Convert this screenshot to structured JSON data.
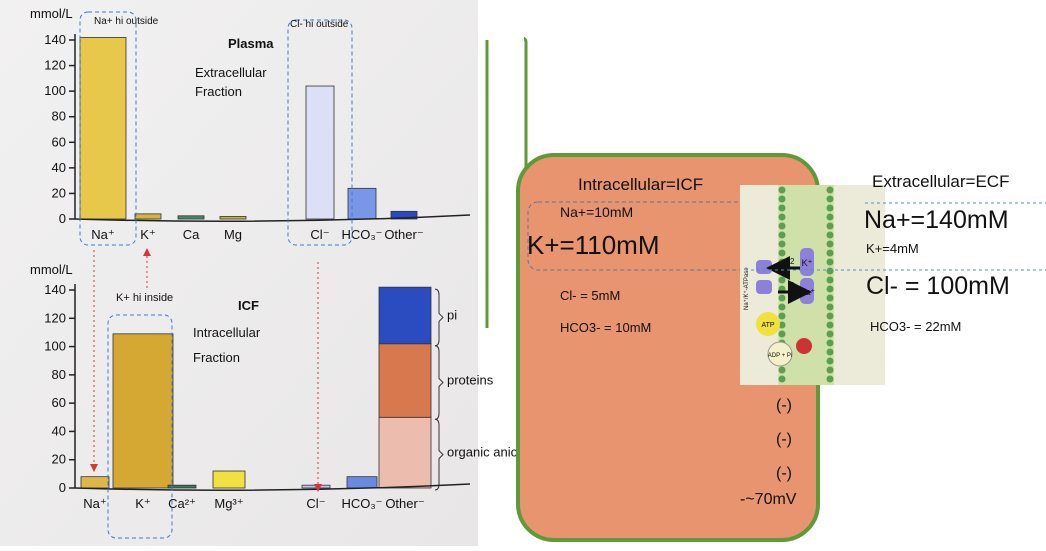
{
  "chart_data": [
    {
      "type": "bar",
      "unit_label": "mmol/L",
      "title": "Plasma",
      "subtitle": [
        "Extracellular",
        "Fraction"
      ],
      "categories": [
        "Na⁺",
        "K⁺",
        "Ca",
        "Mg",
        "Cl⁻",
        "HCO₃⁻",
        "Other⁻"
      ],
      "values": [
        142,
        4,
        2.5,
        2,
        104,
        24,
        6
      ],
      "colors": [
        "#e8c84a",
        "#d9b43c",
        "#4a8a6a",
        "#c8b840",
        "#dcdff5",
        "#7a96e6",
        "#2a48c8"
      ],
      "ylim": [
        0,
        140
      ],
      "yticks": [
        0,
        20,
        40,
        60,
        80,
        100,
        120,
        140
      ],
      "annotations": [
        "Na+ hi outside",
        "Cl- hi outside"
      ]
    },
    {
      "type": "bar",
      "unit_label": "mmol/L",
      "title": "ICF",
      "subtitle": [
        "Intracellular",
        "Fraction"
      ],
      "categories": [
        "Na⁺",
        "K⁺",
        "Ca²⁺",
        "Mg³⁺",
        "Cl⁻",
        "HCO₃⁻",
        "Other⁻"
      ],
      "values": [
        8,
        109,
        2,
        12,
        2,
        8,
        null
      ],
      "colors": [
        "#dcb848",
        "#d4a832",
        "#3a7a5a",
        "#f0e040",
        "#b8c4f0",
        "#6a8ae0",
        null
      ],
      "series": [
        {
          "name": "organic anions",
          "color": "#ecbcae",
          "values": [
            null,
            null,
            null,
            null,
            null,
            null,
            50
          ]
        },
        {
          "name": "proteins",
          "color": "#d8784e",
          "values": [
            null,
            null,
            null,
            null,
            null,
            null,
            52
          ]
        },
        {
          "name": "pi",
          "color": "#2a4cc0",
          "values": [
            null,
            null,
            null,
            null,
            null,
            null,
            40
          ]
        }
      ],
      "ylim": [
        0,
        140
      ],
      "yticks": [
        0,
        20,
        40,
        60,
        80,
        100,
        120,
        140
      ],
      "annotations": [
        "K+ hi inside"
      ]
    }
  ],
  "cell": {
    "icf_title": "Intracellular=ICF",
    "icf": [
      "Na+=10mM",
      "K+=110mM",
      "Cl- = 5mM",
      "HCO3- = 10mM"
    ],
    "charges": [
      "(-)",
      "(-)",
      "(-)"
    ],
    "potential": "-~70mV",
    "ecf_title": "Extracellular=ECF",
    "ecf": [
      "Na+=140mM",
      "K+=4mM",
      "Cl- = 100mM",
      "HCO3- = 22mM"
    ],
    "pump": {
      "label": "Na⁺/K⁺-ATPase",
      "ions": [
        "K⁺",
        "Na⁺"
      ],
      "arrows": [
        "2",
        "3"
      ],
      "atp": "ATP",
      "adp": "ADP + Pi"
    }
  }
}
